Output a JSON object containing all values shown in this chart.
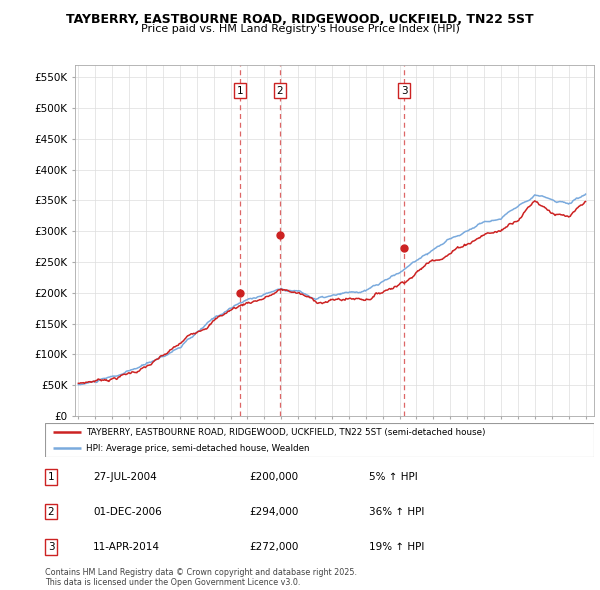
{
  "title": "TAYBERRY, EASTBOURNE ROAD, RIDGEWOOD, UCKFIELD, TN22 5ST",
  "subtitle": "Price paid vs. HM Land Registry's House Price Index (HPI)",
  "ylabel_ticks": [
    "£0",
    "£50K",
    "£100K",
    "£150K",
    "£200K",
    "£250K",
    "£300K",
    "£350K",
    "£400K",
    "£450K",
    "£500K",
    "£550K"
  ],
  "ytick_values": [
    0,
    50000,
    100000,
    150000,
    200000,
    250000,
    300000,
    350000,
    400000,
    450000,
    500000,
    550000
  ],
  "xmin": 1994.8,
  "xmax": 2025.5,
  "ymin": 0,
  "ymax": 570000,
  "sale_dates": [
    2004.57,
    2006.92,
    2014.28
  ],
  "sale_prices": [
    200000,
    294000,
    272000
  ],
  "sale_labels": [
    "1",
    "2",
    "3"
  ],
  "legend_line1": "TAYBERRY, EASTBOURNE ROAD, RIDGEWOOD, UCKFIELD, TN22 5ST (semi-detached house)",
  "legend_line2": "HPI: Average price, semi-detached house, Wealden",
  "table_rows": [
    [
      "1",
      "27-JUL-2004",
      "£200,000",
      "5% ↑ HPI"
    ],
    [
      "2",
      "01-DEC-2006",
      "£294,000",
      "36% ↑ HPI"
    ],
    [
      "3",
      "11-APR-2014",
      "£272,000",
      "19% ↑ HPI"
    ]
  ],
  "footer": "Contains HM Land Registry data © Crown copyright and database right 2025.\nThis data is licensed under the Open Government Licence v3.0.",
  "hpi_color": "#7aaadd",
  "price_color": "#cc2222",
  "vline_color": "#dd6666",
  "grid_color": "#dddddd",
  "hpi_base_years": [
    1995,
    1996,
    1997,
    1998,
    1999,
    2000,
    2001,
    2002,
    2003,
    2004,
    2005,
    2006,
    2007,
    2008,
    2009,
    2010,
    2011,
    2012,
    2013,
    2014,
    2015,
    2016,
    2017,
    2018,
    2019,
    2020,
    2021,
    2022,
    2023,
    2024,
    2025
  ],
  "hpi_base_vals": [
    50000,
    55000,
    60000,
    68000,
    78000,
    92000,
    108000,
    128000,
    150000,
    168000,
    180000,
    190000,
    200000,
    198000,
    185000,
    188000,
    190000,
    192000,
    205000,
    220000,
    240000,
    260000,
    275000,
    290000,
    305000,
    310000,
    330000,
    355000,
    345000,
    340000,
    355000
  ],
  "pp_base_vals": [
    50000,
    56000,
    62000,
    71000,
    82000,
    96000,
    113000,
    135000,
    158000,
    175000,
    188000,
    198000,
    210000,
    205000,
    190000,
    193000,
    196000,
    198000,
    212000,
    228000,
    250000,
    272000,
    288000,
    305000,
    322000,
    328000,
    352000,
    385000,
    370000,
    358000,
    375000
  ]
}
